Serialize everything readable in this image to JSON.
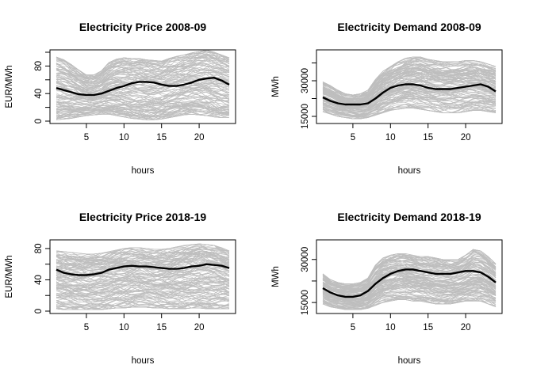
{
  "figure": {
    "background": "#ffffff",
    "band_color": "#bebebe",
    "mean_color": "#000000"
  },
  "chart_data": [
    {
      "type": "line",
      "title": "Electricity Price 2008-09",
      "xlabel": "hours",
      "ylabel": "EUR/MWh",
      "xlim": [
        1,
        24
      ],
      "ylim": [
        0,
        100
      ],
      "xticks": [
        5,
        10,
        15,
        20
      ],
      "yticks": [
        0,
        40,
        80
      ],
      "grid": false,
      "band": {
        "upper": [
          93,
          89,
          82,
          74,
          67,
          67,
          73,
          85,
          90,
          92,
          91,
          91,
          89,
          88,
          87,
          91,
          94,
          96,
          99,
          101,
          103,
          100,
          96,
          92
        ],
        "lower": [
          2,
          3,
          4,
          6,
          8,
          9,
          10,
          10,
          8,
          6,
          4,
          3,
          2,
          2,
          3,
          5,
          7,
          9,
          10,
          9,
          8,
          6,
          5,
          5
        ]
      },
      "mean": {
        "x": [
          1,
          2,
          3,
          4,
          5,
          6,
          7,
          8,
          9,
          10,
          11,
          12,
          13,
          14,
          15,
          16,
          17,
          18,
          19,
          20,
          21,
          22,
          23,
          24
        ],
        "y": [
          48,
          45,
          42,
          39,
          38,
          38,
          40,
          44,
          48,
          51,
          55,
          57,
          57,
          56,
          53,
          51,
          51,
          53,
          56,
          60,
          62,
          63,
          59,
          53
        ]
      }
    },
    {
      "type": "line",
      "title": "Electricity Demand 2008-09",
      "xlabel": "hours",
      "ylabel": "MWh",
      "xlim": [
        1,
        24
      ],
      "ylim": [
        13000,
        42000
      ],
      "xticks": [
        5,
        10,
        15,
        20
      ],
      "yticks": [
        15000,
        30000
      ],
      "ytick_labels": [
        "15000",
        "30000"
      ],
      "grid": false,
      "band": {
        "upper": [
          29500,
          28000,
          26000,
          24500,
          24000,
          24500,
          26000,
          30500,
          34000,
          36000,
          38000,
          39500,
          40000,
          40000,
          39000,
          38500,
          38000,
          38000,
          38000,
          38500,
          38500,
          38000,
          37000,
          36000
        ],
        "lower": [
          17000,
          16000,
          15000,
          14500,
          14000,
          14000,
          14500,
          15500,
          16500,
          17500,
          18000,
          18500,
          18500,
          18000,
          17500,
          17000,
          16500,
          16500,
          16500,
          17000,
          17500,
          17500,
          17000,
          16500
        ]
      },
      "mean": {
        "x": [
          1,
          2,
          3,
          4,
          5,
          6,
          7,
          8,
          9,
          10,
          11,
          12,
          13,
          14,
          15,
          16,
          17,
          18,
          19,
          20,
          21,
          22,
          23,
          24
        ],
        "y": [
          23000,
          21500,
          20500,
          20000,
          20000,
          20000,
          20500,
          22500,
          25000,
          27000,
          28000,
          28500,
          28500,
          28000,
          27000,
          26500,
          26500,
          26500,
          27000,
          27500,
          28000,
          28500,
          27500,
          25500
        ]
      }
    },
    {
      "type": "line",
      "title": "Electricity Price 2018-19",
      "xlabel": "hours",
      "ylabel": "EUR/MWh",
      "xlim": [
        1,
        24
      ],
      "ylim": [
        0,
        88
      ],
      "xticks": [
        5,
        10,
        15,
        20
      ],
      "yticks": [
        0,
        40,
        80
      ],
      "grid": false,
      "band": {
        "upper": [
          77,
          76,
          75,
          74,
          73,
          73,
          74,
          76,
          78,
          80,
          81,
          81,
          80,
          79,
          79,
          80,
          82,
          84,
          85,
          86,
          85,
          84,
          81,
          77
        ],
        "lower": [
          3,
          2,
          2,
          2,
          2,
          2,
          2,
          3,
          4,
          4,
          5,
          5,
          5,
          4,
          4,
          3,
          3,
          3,
          4,
          4,
          3,
          3,
          3,
          3
        ]
      },
      "mean": {
        "x": [
          1,
          2,
          3,
          4,
          5,
          6,
          7,
          8,
          9,
          10,
          11,
          12,
          13,
          14,
          15,
          16,
          17,
          18,
          19,
          20,
          21,
          22,
          23,
          24
        ],
        "y": [
          53,
          49,
          47,
          46,
          46,
          47,
          49,
          53,
          55,
          57,
          58,
          57,
          57,
          56,
          55,
          54,
          54,
          55,
          57,
          58,
          60,
          59,
          58,
          55
        ]
      }
    },
    {
      "type": "line",
      "title": "Electricity Demand 2018-19",
      "xlabel": "hours",
      "ylabel": "MWh",
      "xlim": [
        1,
        24
      ],
      "ylim": [
        12000,
        36000
      ],
      "xticks": [
        5,
        10,
        15,
        20
      ],
      "yticks": [
        15000,
        30000
      ],
      "ytick_labels": [
        "15000",
        "30000"
      ],
      "grid": false,
      "band": {
        "upper": [
          25000,
          23000,
          22000,
          21500,
          21500,
          22000,
          23500,
          28000,
          30500,
          31500,
          32000,
          32000,
          31500,
          31000,
          31000,
          30500,
          30000,
          30000,
          30000,
          31500,
          33500,
          33000,
          31000,
          28500
        ],
        "lower": [
          14500,
          13500,
          13000,
          12500,
          12500,
          12500,
          13000,
          14000,
          15000,
          15500,
          16000,
          16000,
          15500,
          15500,
          15000,
          14500,
          14500,
          14500,
          15000,
          15500,
          15500,
          15500,
          14500,
          13500
        ]
      },
      "mean": {
        "x": [
          1,
          2,
          3,
          4,
          5,
          6,
          7,
          8,
          9,
          10,
          11,
          12,
          13,
          14,
          15,
          16,
          17,
          18,
          19,
          20,
          21,
          22,
          23,
          24
        ],
        "y": [
          20000,
          18500,
          17500,
          17000,
          17000,
          17500,
          19000,
          21500,
          23500,
          25000,
          26000,
          26500,
          26500,
          26000,
          25500,
          25000,
          25000,
          25000,
          25500,
          26000,
          26000,
          25500,
          24000,
          22000
        ]
      }
    }
  ]
}
